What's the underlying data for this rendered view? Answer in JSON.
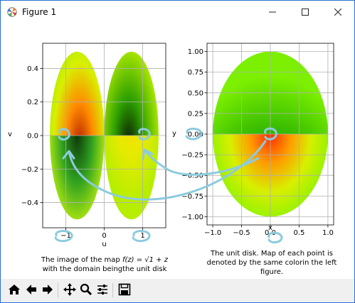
{
  "window": {
    "title": "Figure 1",
    "icons": {
      "app": "matplotlib-icon",
      "minimize": "minimize-icon",
      "maximize": "maximize-icon",
      "close": "close-icon"
    }
  },
  "toolbar": {
    "buttons": [
      {
        "name": "home",
        "icon": "home-icon"
      },
      {
        "name": "back",
        "icon": "arrow-left-icon"
      },
      {
        "name": "forward",
        "icon": "arrow-right-icon"
      },
      {
        "name": "pan",
        "icon": "move-icon"
      },
      {
        "name": "zoom",
        "icon": "magnifier-icon"
      },
      {
        "name": "subplots",
        "icon": "sliders-icon"
      },
      {
        "name": "save",
        "icon": "floppy-icon"
      }
    ]
  },
  "chart_data": [
    {
      "type": "heatmap",
      "title": "",
      "xlabel": "u",
      "ylabel": "v",
      "xlim": [
        -1.6,
        1.6
      ],
      "ylim": [
        -0.55,
        0.55
      ],
      "xticks": [
        -1,
        0,
        1
      ],
      "yticks": [
        -0.4,
        -0.2,
        0.0,
        0.2,
        0.4
      ],
      "xtick_labels": [
        "−1",
        "0",
        "1"
      ],
      "ytick_labels": [
        "−0.4",
        "−0.2",
        "0.0",
        "0.2",
        "0.4"
      ],
      "grid": true,
      "lobes": [
        {
          "center_u": -0.707,
          "half_width_u": 0.707,
          "half_height_v": 0.5
        },
        {
          "center_u": 0.707,
          "half_width_u": 0.707,
          "half_height_v": 0.5
        }
      ],
      "caption_line1_prefix": "The image of the map ",
      "caption_line1_formula": "f(z) = √1 + z",
      "caption_line2": "with the domain beingthe unit disk"
    },
    {
      "type": "heatmap",
      "title": "",
      "xlabel": "x",
      "ylabel": "y",
      "xlim": [
        -1.1,
        1.1
      ],
      "ylim": [
        -1.1,
        1.1
      ],
      "xticks": [
        -1.0,
        -0.5,
        0.0,
        0.5,
        1.0
      ],
      "yticks": [
        -1.0,
        -0.75,
        -0.5,
        -0.25,
        0.0,
        0.25,
        0.5,
        0.75,
        1.0
      ],
      "xtick_labels": [
        "−1.0",
        "−0.5",
        "0.0",
        "0.5",
        "1.0"
      ],
      "ytick_labels": [
        "−1.00",
        "−0.75",
        "−0.50",
        "−0.25",
        "0.00",
        "0.25",
        "0.50",
        "0.75",
        "1.00"
      ],
      "grid": true,
      "disk_radius": 1.0,
      "caption_lines": [
        "The unit disk. Map of each point is",
        "denoted by the same colorin the left",
        "figure."
      ]
    }
  ],
  "annotations": {
    "color": "#8ccbde",
    "description_marks": [
      "circle-left-lobe",
      "circle-right-lobe",
      "circle-disk-center",
      "arrow-to-left",
      "arrow-to-right"
    ]
  }
}
